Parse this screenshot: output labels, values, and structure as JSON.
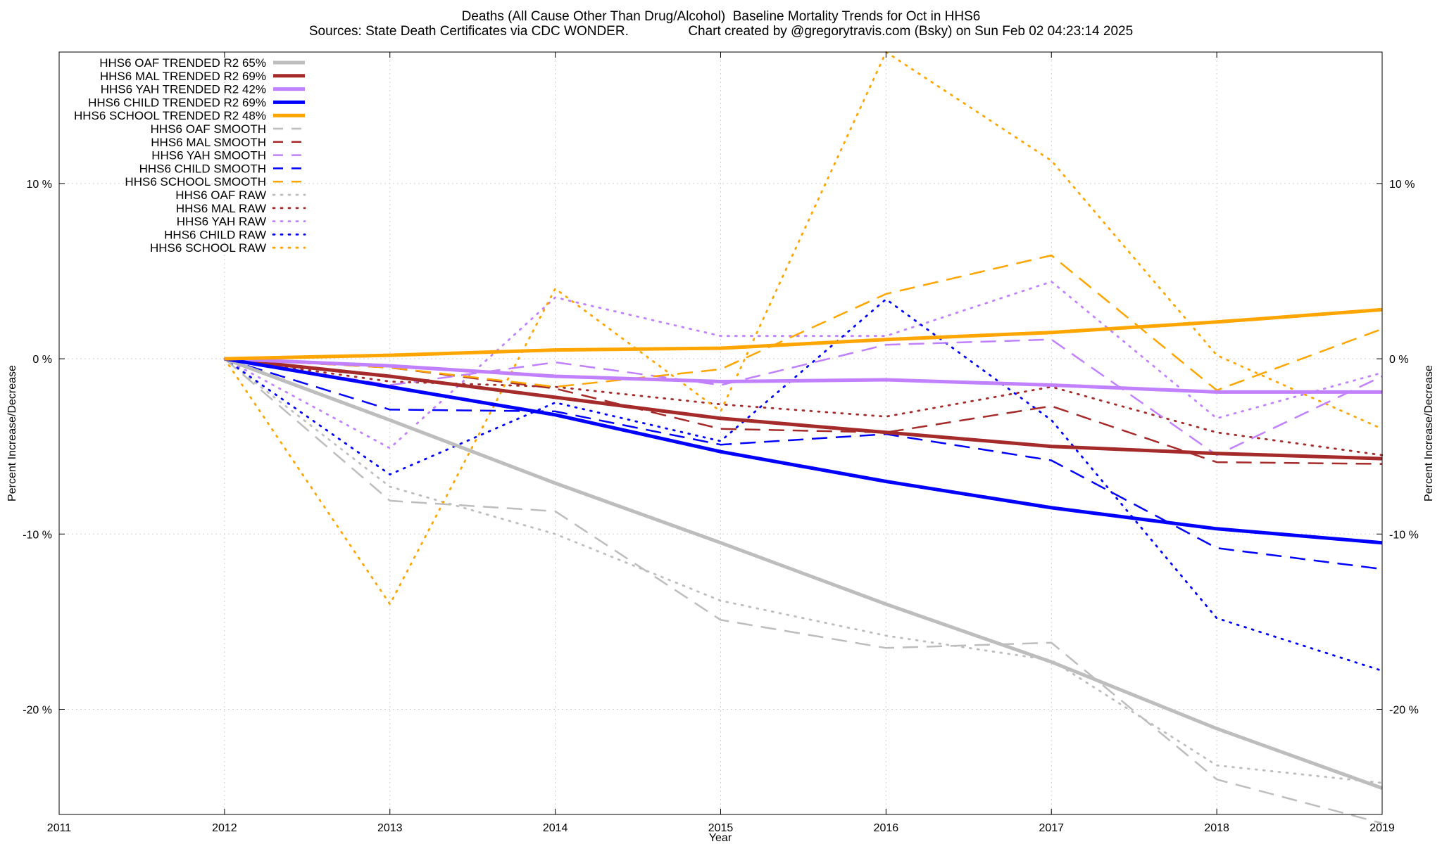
{
  "header": {
    "title": "Deaths (All Cause Other Than Drug/Alcohol)  Baseline Mortality Trends for Oct in HHS6",
    "subtitle": "Sources: State Death Certificates via CDC WONDER.                Chart created by @gregorytravis.com (Bsky) on Sun Feb 02 04:23:14 2025"
  },
  "colors": {
    "OAF": "#bdbdbd",
    "MAL": "#a52a2a",
    "YAH": "#c080ff",
    "CHILD": "#0000ff",
    "SCHOOL": "#ffa500",
    "grid": "#d0d0d0"
  },
  "chart_data": {
    "type": "line",
    "title": "Deaths (All Cause Other Than Drug/Alcohol)  Baseline Mortality Trends for Oct in HHS6",
    "xlabel": "Year",
    "ylabel": "Percent Increase/Decrease",
    "y2label": "Percent Increase/Decrease",
    "xlim": [
      2011,
      2019
    ],
    "ylim": [
      -26,
      17.5
    ],
    "x_ticks": [
      "2011",
      "2012",
      "2013",
      "2014",
      "2015",
      "2016",
      "2017",
      "2018",
      "2019"
    ],
    "y_ticks": [
      {
        "value": 10,
        "label": "10 %"
      },
      {
        "value": 0,
        "label": "0 %"
      },
      {
        "value": -10,
        "label": "-10 %"
      },
      {
        "value": -20,
        "label": "-20 %"
      }
    ],
    "grid": true,
    "legend_position": "top-left",
    "series": [
      {
        "name": "HHS6 OAF TRENDED R2  65%",
        "group": "OAF",
        "style": "trend",
        "x": [
          2012,
          2013,
          2014,
          2015,
          2016,
          2017,
          2018,
          2019
        ],
        "y": [
          0,
          -3.5,
          -7.1,
          -10.5,
          -14.0,
          -17.3,
          -21.1,
          -24.5
        ]
      },
      {
        "name": "HHS6 MAL TRENDED R2  69%",
        "group": "MAL",
        "style": "trend",
        "x": [
          2012,
          2013,
          2014,
          2015,
          2016,
          2017,
          2018,
          2019
        ],
        "y": [
          0,
          -1.0,
          -2.2,
          -3.4,
          -4.2,
          -5.0,
          -5.4,
          -5.7
        ]
      },
      {
        "name": "HHS6 YAH TRENDED R2  42%",
        "group": "YAH",
        "style": "trend",
        "x": [
          2012,
          2013,
          2014,
          2015,
          2016,
          2017,
          2018,
          2019
        ],
        "y": [
          0,
          -0.4,
          -1.0,
          -1.3,
          -1.2,
          -1.5,
          -1.9,
          -1.9
        ]
      },
      {
        "name": "HHS6 CHILD TRENDED R2  69%",
        "group": "CHILD",
        "style": "trend",
        "x": [
          2012,
          2013,
          2014,
          2015,
          2016,
          2017,
          2018,
          2019
        ],
        "y": [
          0,
          -1.6,
          -3.2,
          -5.3,
          -7.0,
          -8.5,
          -9.7,
          -10.5
        ]
      },
      {
        "name": "HHS6 SCHOOL TRENDED R2  48%",
        "group": "SCHOOL",
        "style": "trend",
        "x": [
          2012,
          2013,
          2014,
          2015,
          2016,
          2017,
          2018,
          2019
        ],
        "y": [
          0,
          0.2,
          0.5,
          0.6,
          1.1,
          1.5,
          2.1,
          2.8
        ]
      },
      {
        "name": "HHS6 OAF SMOOTH",
        "group": "OAF",
        "style": "smooth",
        "x": [
          2012,
          2013,
          2014,
          2015,
          2016,
          2017,
          2018,
          2019
        ],
        "y": [
          0,
          -8.1,
          -8.7,
          -14.9,
          -16.5,
          -16.2,
          -24.0,
          -26.5
        ]
      },
      {
        "name": "HHS6 MAL SMOOTH",
        "group": "MAL",
        "style": "smooth",
        "x": [
          2012,
          2013,
          2014,
          2015,
          2016,
          2017,
          2018,
          2019
        ],
        "y": [
          0,
          -0.5,
          -1.7,
          -4.0,
          -4.2,
          -2.7,
          -5.9,
          -6.0
        ]
      },
      {
        "name": "HHS6 YAH SMOOTH",
        "group": "YAH",
        "style": "smooth",
        "x": [
          2012,
          2013,
          2014,
          2015,
          2016,
          2017,
          2018,
          2019
        ],
        "y": [
          0,
          -1.5,
          -0.2,
          -1.5,
          0.8,
          1.1,
          -5.5,
          -1.0
        ]
      },
      {
        "name": "HHS6 CHILD SMOOTH",
        "group": "CHILD",
        "style": "smooth",
        "x": [
          2012,
          2013,
          2014,
          2015,
          2016,
          2017,
          2018,
          2019
        ],
        "y": [
          0,
          -2.9,
          -3.0,
          -4.9,
          -4.3,
          -5.8,
          -10.8,
          -12.0
        ]
      },
      {
        "name": "HHS6 SCHOOL SMOOTH",
        "group": "SCHOOL",
        "style": "smooth",
        "x": [
          2012,
          2013,
          2014,
          2015,
          2016,
          2017,
          2018,
          2019
        ],
        "y": [
          0,
          -0.5,
          -1.6,
          -0.6,
          3.7,
          5.9,
          -1.8,
          1.7
        ]
      },
      {
        "name": "HHS6 OAF RAW",
        "group": "OAF",
        "style": "raw",
        "x": [
          2012,
          2013,
          2014,
          2015,
          2016,
          2017,
          2018,
          2019
        ],
        "y": [
          0,
          -7.3,
          -10.0,
          -13.8,
          -15.8,
          -17.2,
          -23.2,
          -24.2
        ]
      },
      {
        "name": "HHS6 MAL RAW",
        "group": "MAL",
        "style": "raw",
        "x": [
          2012,
          2013,
          2014,
          2015,
          2016,
          2017,
          2018,
          2019
        ],
        "y": [
          0,
          -1.3,
          -1.6,
          -2.6,
          -3.3,
          -1.6,
          -4.2,
          -5.5
        ]
      },
      {
        "name": "HHS6 YAH RAW",
        "group": "YAH",
        "style": "raw",
        "x": [
          2012,
          2013,
          2014,
          2015,
          2016,
          2017,
          2018,
          2019
        ],
        "y": [
          0,
          -5.1,
          3.5,
          1.3,
          1.3,
          4.4,
          -3.4,
          -0.8
        ]
      },
      {
        "name": "HHS6 CHILD RAW",
        "group": "CHILD",
        "style": "raw",
        "x": [
          2012,
          2013,
          2014,
          2015,
          2016,
          2017,
          2018,
          2019
        ],
        "y": [
          0,
          -6.6,
          -2.5,
          -4.7,
          3.4,
          -3.5,
          -14.8,
          -17.8
        ]
      },
      {
        "name": "HHS6 SCHOOL RAW",
        "group": "SCHOOL",
        "style": "raw",
        "x": [
          2012,
          2013,
          2014,
          2015,
          2016,
          2017,
          2018,
          2019
        ],
        "y": [
          0,
          -14.0,
          4.0,
          -3.0,
          17.5,
          11.3,
          0.2,
          -4.0
        ]
      }
    ]
  }
}
